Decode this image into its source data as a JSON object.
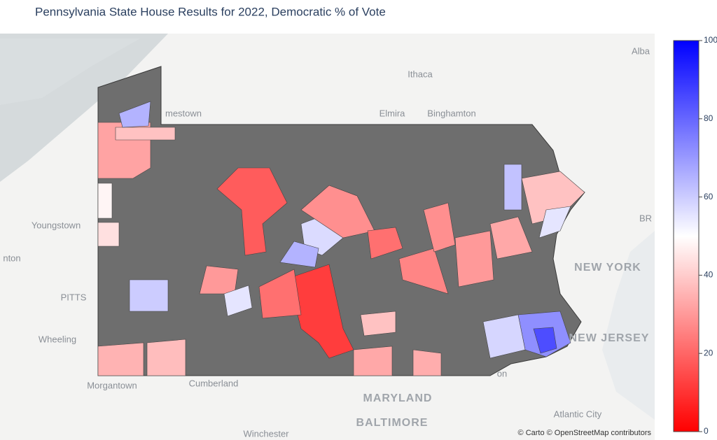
{
  "chart_data": {
    "type": "choropleth",
    "title": "Pennsylvania State House Results for 2022, Democratic % of Vote",
    "colorscale": [
      "#ff0000",
      "#ffffff",
      "#0000ff"
    ],
    "zlim": [
      0,
      100
    ],
    "zticks": [
      0,
      20,
      40,
      60,
      80,
      100
    ],
    "missing_color": "#6e6e6e",
    "values": [
      12,
      18,
      38,
      32,
      38,
      65,
      35,
      37,
      60,
      72,
      85,
      58,
      57,
      65,
      28,
      22,
      26,
      28,
      22,
      33,
      34,
      38,
      30,
      48,
      44,
      55,
      62,
      55,
      33,
      30
    ],
    "map_labels": [
      "Ithaca",
      "Elmira",
      "Binghamton",
      "mestown",
      "Youngstown",
      "PITTS",
      "Wheeling",
      "Morgantown",
      "Cumberland",
      "MARYLAND",
      "BALTIMORE",
      "Winchester",
      "NEW YORK",
      "NEW JERSEY",
      "Atlantic City",
      "Alba",
      "BR",
      "nton",
      "on"
    ],
    "attribution": "© Carto © OpenStreetMap contributors"
  }
}
